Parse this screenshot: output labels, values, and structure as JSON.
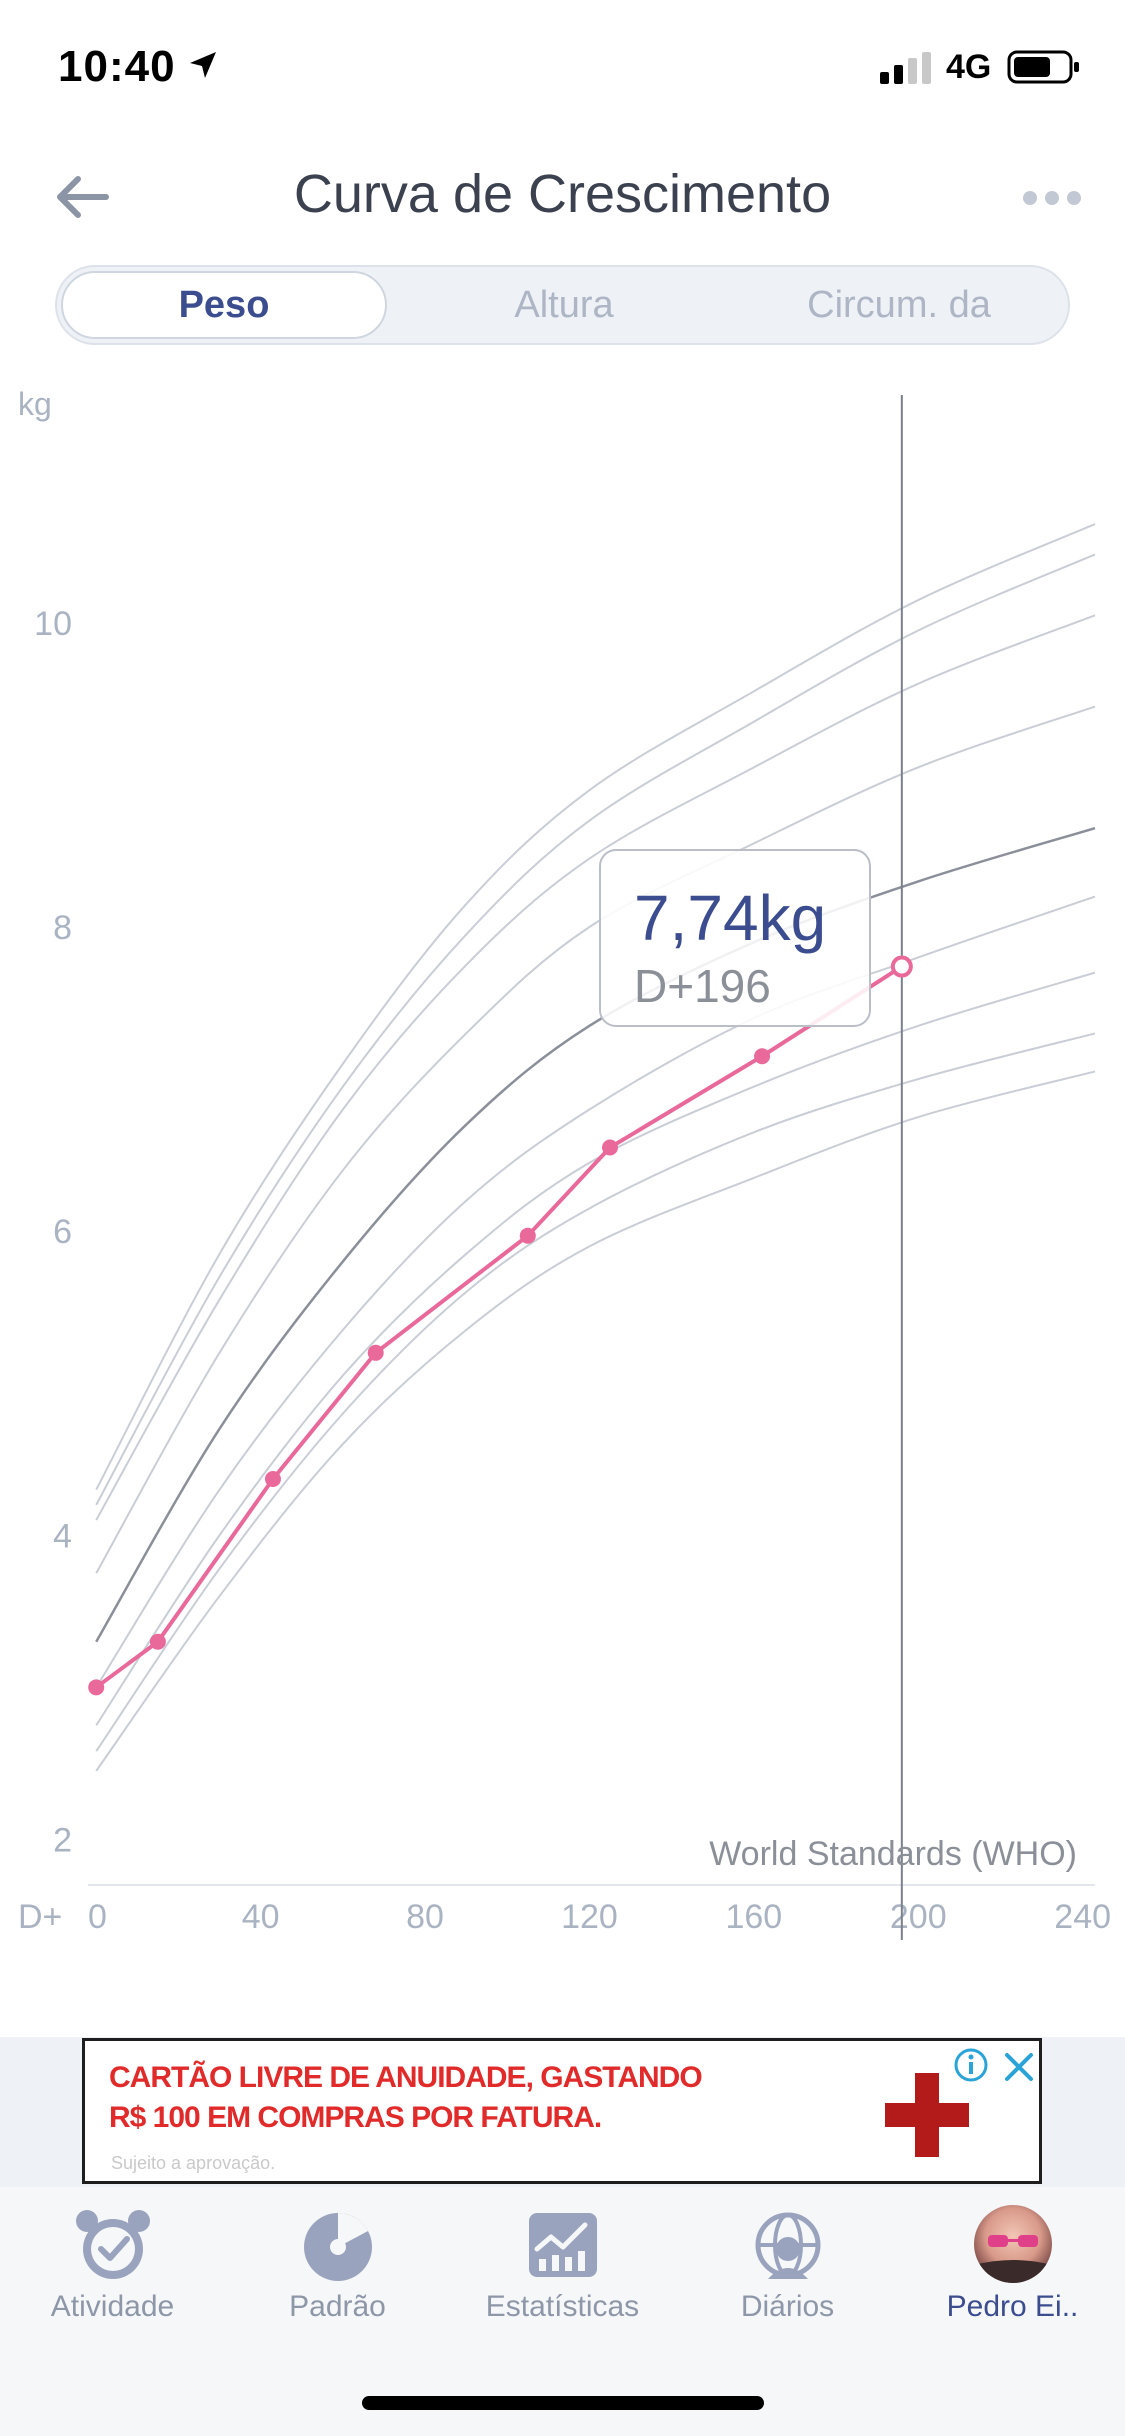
{
  "status_bar": {
    "time": "10:40",
    "network": "4G"
  },
  "header": {
    "title": "Curva de Crescimento"
  },
  "tabs": [
    {
      "label": "Peso",
      "active": true
    },
    {
      "label": "Altura",
      "active": false
    },
    {
      "label": "Circum. da",
      "active": false
    }
  ],
  "chart_data": {
    "type": "line",
    "ylabel": "kg",
    "xlabel": "D+",
    "x_ticks": [
      0,
      40,
      80,
      120,
      160,
      200,
      240
    ],
    "y_ticks": [
      2,
      4,
      6,
      8,
      10
    ],
    "xlim": [
      -2,
      243
    ],
    "ylim": [
      1.7,
      11.4
    ],
    "standard_label": "World Standards (WHO)",
    "highlight": {
      "x": 196,
      "y": 7.74,
      "value_label": "7,74kg",
      "day_label": "D+196"
    },
    "measurements": {
      "x": [
        0,
        15,
        43,
        68,
        105,
        125,
        162,
        196
      ],
      "y": [
        3.0,
        3.3,
        4.37,
        5.2,
        5.97,
        6.55,
        7.15,
        7.74
      ]
    },
    "percentile_curves": [
      {
        "x": [
          0,
          30,
          60,
          90,
          120,
          160,
          200,
          243
        ],
        "y": [
          2.45,
          3.6,
          4.6,
          5.35,
          5.9,
          6.35,
          6.75,
          7.05
        ]
      },
      {
        "x": [
          0,
          30,
          60,
          90,
          120,
          160,
          200,
          243
        ],
        "y": [
          2.58,
          3.78,
          4.8,
          5.6,
          6.15,
          6.65,
          7.0,
          7.3
        ]
      },
      {
        "x": [
          0,
          30,
          60,
          90,
          120,
          160,
          200,
          243
        ],
        "y": [
          2.75,
          4.0,
          5.05,
          5.85,
          6.45,
          6.95,
          7.35,
          7.7
        ]
      },
      {
        "x": [
          0,
          30,
          60,
          90,
          120,
          160,
          200,
          243
        ],
        "y": [
          3.0,
          4.3,
          5.35,
          6.2,
          6.8,
          7.4,
          7.8,
          8.2
        ]
      },
      {
        "x": [
          0,
          30,
          60,
          90,
          120,
          160,
          200,
          243
        ],
        "y": [
          3.3,
          4.7,
          5.8,
          6.7,
          7.35,
          7.9,
          8.3,
          8.65
        ]
      },
      {
        "x": [
          0,
          30,
          60,
          90,
          120,
          160,
          200,
          243
        ],
        "y": [
          3.75,
          5.2,
          6.4,
          7.3,
          8.0,
          8.55,
          9.05,
          9.45
        ]
      },
      {
        "x": [
          0,
          30,
          60,
          90,
          120,
          160,
          200,
          243
        ],
        "y": [
          4.1,
          5.55,
          6.8,
          7.75,
          8.45,
          9.05,
          9.6,
          10.05
        ]
      },
      {
        "x": [
          0,
          30,
          60,
          90,
          120,
          160,
          200,
          243
        ],
        "y": [
          4.2,
          5.7,
          6.95,
          7.95,
          8.7,
          9.35,
          9.95,
          10.45
        ]
      },
      {
        "x": [
          0,
          30,
          60,
          90,
          120,
          160,
          200,
          243
        ],
        "y": [
          4.3,
          5.85,
          7.1,
          8.15,
          8.9,
          9.55,
          10.15,
          10.65
        ]
      }
    ],
    "median_index": 4,
    "colors": {
      "measurement": "#e8699a",
      "percentile": "#c9cdd6",
      "median": "#8a8f99",
      "axis_text": "#aab3c2",
      "tooltip_value": "#3b4d8f"
    }
  },
  "ad": {
    "line1": "CARTÃO LIVRE DE ANUIDADE, GASTANDO",
    "line2": "R$ 100 EM COMPRAS POR FATURA.",
    "footnote": "Sujeito a aprovação."
  },
  "tabbar": [
    {
      "label": "Atividade",
      "icon": "alarm-clock-icon",
      "active": false
    },
    {
      "label": "Padrão",
      "icon": "pattern-pie-icon",
      "active": false
    },
    {
      "label": "Estatísticas",
      "icon": "statistics-chart-icon",
      "active": false
    },
    {
      "label": "Diários",
      "icon": "diary-globe-icon",
      "active": false
    },
    {
      "label": "Pedro Ei..",
      "icon": "avatar",
      "active": true
    }
  ]
}
